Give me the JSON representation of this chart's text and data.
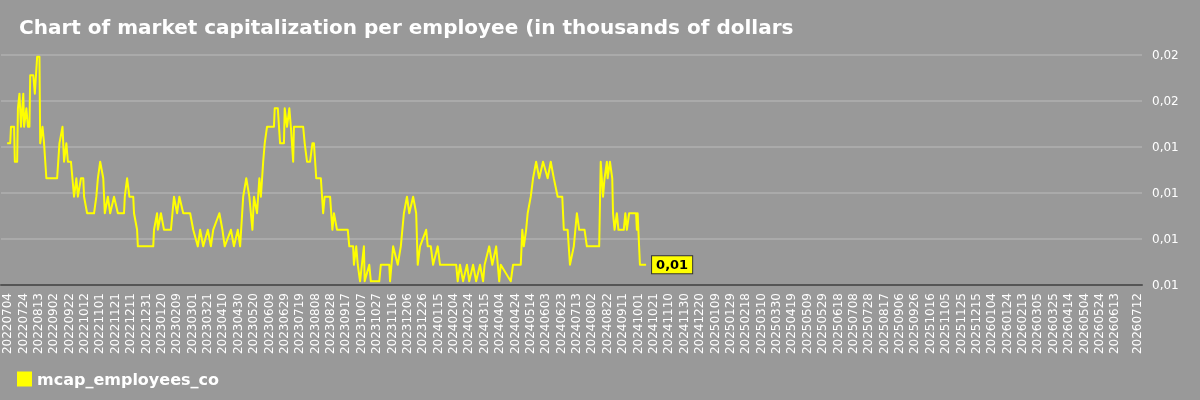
{
  "chart_data": {
    "type": "line",
    "title": "Chart of market capitalization per employee (in thousands of dollars",
    "xlim": [
      "2022-06-26",
      "2026-07-19"
    ],
    "xticks": [
      {
        "value": "2022-07-04",
        "label": "20220704"
      },
      {
        "value": "2022-07-24",
        "label": "20220724"
      },
      {
        "value": "2022-08-13",
        "label": "20220813"
      },
      {
        "value": "2022-09-02",
        "label": "20220902"
      },
      {
        "value": "2022-09-22",
        "label": "20220922"
      },
      {
        "value": "2022-10-12",
        "label": "20221012"
      },
      {
        "value": "2022-11-01",
        "label": "20221101"
      },
      {
        "value": "2022-11-21",
        "label": "20221121"
      },
      {
        "value": "2022-12-11",
        "label": "20221211"
      },
      {
        "value": "2022-12-31",
        "label": "20221231"
      },
      {
        "value": "2023-01-20",
        "label": "20230120"
      },
      {
        "value": "2023-02-09",
        "label": "20230209"
      },
      {
        "value": "2023-03-01",
        "label": "20230301"
      },
      {
        "value": "2023-03-21",
        "label": "20230321"
      },
      {
        "value": "2023-04-10",
        "label": "20230410"
      },
      {
        "value": "2023-04-30",
        "label": "20230430"
      },
      {
        "value": "2023-05-20",
        "label": "20230520"
      },
      {
        "value": "2023-06-09",
        "label": "20230609"
      },
      {
        "value": "2023-06-29",
        "label": "20230629"
      },
      {
        "value": "2023-07-19",
        "label": "20230719"
      },
      {
        "value": "2023-08-08",
        "label": "20230808"
      },
      {
        "value": "2023-08-28",
        "label": "20230828"
      },
      {
        "value": "2023-09-17",
        "label": "20230917"
      },
      {
        "value": "2023-10-07",
        "label": "20231007"
      },
      {
        "value": "2023-10-27",
        "label": "20231027"
      },
      {
        "value": "2023-11-16",
        "label": "20231116"
      },
      {
        "value": "2023-12-06",
        "label": "20231206"
      },
      {
        "value": "2023-12-26",
        "label": "20231226"
      },
      {
        "value": "2024-01-15",
        "label": "20240115"
      },
      {
        "value": "2024-02-04",
        "label": "20240204"
      },
      {
        "value": "2024-02-24",
        "label": "20240224"
      },
      {
        "value": "2024-03-15",
        "label": "20240315"
      },
      {
        "value": "2024-04-04",
        "label": "20240404"
      },
      {
        "value": "2024-04-24",
        "label": "20240424"
      },
      {
        "value": "2024-05-14",
        "label": "20240514"
      },
      {
        "value": "2024-06-03",
        "label": "20240603"
      },
      {
        "value": "2024-06-23",
        "label": "20240623"
      },
      {
        "value": "2024-07-13",
        "label": "20240713"
      },
      {
        "value": "2024-08-02",
        "label": "20240802"
      },
      {
        "value": "2024-08-22",
        "label": "20240822"
      },
      {
        "value": "2024-09-11",
        "label": "20240911"
      },
      {
        "value": "2024-10-01",
        "label": "20241001"
      },
      {
        "value": "2024-10-21",
        "label": "20241021"
      },
      {
        "value": "2024-11-10",
        "label": "20241110"
      },
      {
        "value": "2024-11-30",
        "label": "20241130"
      },
      {
        "value": "2024-12-20",
        "label": "20241220"
      },
      {
        "value": "2025-01-09",
        "label": "20250109"
      },
      {
        "value": "2025-01-29",
        "label": "20250129"
      },
      {
        "value": "2025-02-18",
        "label": "20250218"
      },
      {
        "value": "2025-03-10",
        "label": "20250310"
      },
      {
        "value": "2025-03-30",
        "label": "20250330"
      },
      {
        "value": "2025-04-19",
        "label": "20250419"
      },
      {
        "value": "2025-05-09",
        "label": "20250509"
      },
      {
        "value": "2025-05-29",
        "label": "20250529"
      },
      {
        "value": "2025-06-18",
        "label": "20250618"
      },
      {
        "value": "2025-07-08",
        "label": "20250708"
      },
      {
        "value": "2025-07-28",
        "label": "20250728"
      },
      {
        "value": "2025-08-17",
        "label": "20250817"
      },
      {
        "value": "2025-09-06",
        "label": "20250906"
      },
      {
        "value": "2025-09-26",
        "label": "20250926"
      },
      {
        "value": "2025-10-16",
        "label": "20251016"
      },
      {
        "value": "2025-11-05",
        "label": "20251105"
      },
      {
        "value": "2025-11-25",
        "label": "20251125"
      },
      {
        "value": "2025-12-15",
        "label": "20251215"
      },
      {
        "value": "2026-01-04",
        "label": "20260104"
      },
      {
        "value": "2026-01-24",
        "label": "20260124"
      },
      {
        "value": "2026-02-13",
        "label": "20260213"
      },
      {
        "value": "2026-03-05",
        "label": "20260305"
      },
      {
        "value": "2026-03-25",
        "label": "20260325"
      },
      {
        "value": "2026-04-14",
        "label": "20260414"
      },
      {
        "value": "2026-05-04",
        "label": "20260504"
      },
      {
        "value": "2026-05-24",
        "label": "20260524"
      },
      {
        "value": "2026-06-13",
        "label": "20260613"
      },
      {
        "value": "2026-07-12",
        "label": "20260712"
      }
    ],
    "ylim": [
      0.0075,
      0.02
    ],
    "yticks": [
      {
        "value": 0.0075,
        "label": "0,01"
      },
      {
        "value": 0.01,
        "label": "0,01"
      },
      {
        "value": 0.0125,
        "label": "0,01"
      },
      {
        "value": 0.015,
        "label": "0,01"
      },
      {
        "value": 0.0175,
        "label": "0,02"
      },
      {
        "value": 0.02,
        "label": "0,02"
      }
    ],
    "grid": "y",
    "legend": "bottom left",
    "x": [
      "2022-07-04",
      "2022-07-08",
      "2022-07-09",
      "2022-07-13",
      "2022-07-14",
      "2022-07-17",
      "2022-07-18",
      "2022-07-20",
      "2022-07-22",
      "2022-07-25",
      "2022-07-26",
      "2022-07-29",
      "2022-07-31",
      "2022-08-02",
      "2022-08-03",
      "2022-08-07",
      "2022-08-09",
      "2022-08-12",
      "2022-08-15",
      "2022-08-16",
      "2022-08-19",
      "2022-08-21",
      "2022-08-24",
      "2022-09-07",
      "2022-09-10",
      "2022-09-14",
      "2022-09-16",
      "2022-09-19",
      "2022-09-21",
      "2022-09-25",
      "2022-09-29",
      "2022-10-02",
      "2022-10-04",
      "2022-10-08",
      "2022-10-11",
      "2022-10-12",
      "2022-10-16",
      "2022-10-25",
      "2022-10-28",
      "2022-10-30",
      "2022-11-02",
      "2022-11-06",
      "2022-11-08",
      "2022-11-12",
      "2022-11-15",
      "2022-11-20",
      "2022-11-25",
      "2022-12-03",
      "2022-12-04",
      "2022-12-07",
      "2022-12-10",
      "2022-12-15",
      "2022-12-16",
      "2022-12-20",
      "2022-12-21",
      "2023-01-10",
      "2023-01-11",
      "2023-01-15",
      "2023-01-16",
      "2023-01-20",
      "2023-01-24",
      "2023-02-02",
      "2023-02-06",
      "2023-02-10",
      "2023-02-13",
      "2023-02-18",
      "2023-02-27",
      "2023-03-03",
      "2023-03-09",
      "2023-03-12",
      "2023-03-16",
      "2023-03-22",
      "2023-03-26",
      "2023-03-29",
      "2023-04-06",
      "2023-04-10",
      "2023-04-13",
      "2023-04-21",
      "2023-04-25",
      "2023-04-30",
      "2023-05-03",
      "2023-05-07",
      "2023-05-11",
      "2023-05-15",
      "2023-05-19",
      "2023-05-21",
      "2023-05-25",
      "2023-05-28",
      "2023-05-30",
      "2023-06-02",
      "2023-06-04",
      "2023-06-07",
      "2023-06-16",
      "2023-06-17",
      "2023-06-21",
      "2023-06-24",
      "2023-06-29",
      "2023-06-30",
      "2023-07-03",
      "2023-07-06",
      "2023-07-08",
      "2023-07-11",
      "2023-07-12",
      "2023-07-24",
      "2023-07-26",
      "2023-07-29",
      "2023-08-02",
      "2023-08-05",
      "2023-08-07",
      "2023-08-10",
      "2023-08-16",
      "2023-08-19",
      "2023-08-21",
      "2023-08-28",
      "2023-08-31",
      "2023-09-02",
      "2023-09-06",
      "2023-09-20",
      "2023-09-22",
      "2023-09-27",
      "2023-09-28",
      "2023-10-01",
      "2023-10-03",
      "2023-10-06",
      "2023-10-11",
      "2023-10-12",
      "2023-10-18",
      "2023-10-20",
      "2023-10-31",
      "2023-11-02",
      "2023-11-13",
      "2023-11-14",
      "2023-11-18",
      "2023-11-24",
      "2023-11-28",
      "2023-12-02",
      "2023-12-06",
      "2023-12-09",
      "2023-12-14",
      "2023-12-18",
      "2023-12-20",
      "2023-12-23",
      "2023-12-31",
      "2024-01-02",
      "2024-01-06",
      "2024-01-09",
      "2024-01-15",
      "2024-01-18",
      "2024-02-08",
      "2024-02-10",
      "2024-02-13",
      "2024-02-17",
      "2024-02-22",
      "2024-02-25",
      "2024-03-01",
      "2024-03-05",
      "2024-03-10",
      "2024-03-14",
      "2024-03-16",
      "2024-03-22",
      "2024-03-26",
      "2024-03-31",
      "2024-04-04",
      "2024-04-06",
      "2024-04-19",
      "2024-04-22",
      "2024-05-02",
      "2024-05-04",
      "2024-05-06",
      "2024-05-09",
      "2024-05-11",
      "2024-05-15",
      "2024-05-18",
      "2024-05-22",
      "2024-05-26",
      "2024-05-31",
      "2024-06-06",
      "2024-06-10",
      "2024-06-14",
      "2024-06-19",
      "2024-06-25",
      "2024-06-27",
      "2024-07-02",
      "2024-07-05",
      "2024-07-10",
      "2024-07-14",
      "2024-07-17",
      "2024-07-24",
      "2024-07-27",
      "2024-08-12",
      "2024-08-14",
      "2024-08-17",
      "2024-08-19",
      "2024-08-22",
      "2024-08-23",
      "2024-08-26",
      "2024-08-29",
      "2024-08-30",
      "2024-09-01",
      "2024-09-04",
      "2024-09-06",
      "2024-09-13",
      "2024-09-15",
      "2024-09-17",
      "2024-09-20",
      "2024-09-29",
      "2024-09-30",
      "2024-10-01",
      "2024-10-04",
      "2024-10-12"
    ],
    "series": [
      {
        "name": "mcap_employees_co",
        "color": "#ffff00",
        "values": [
          0.0152,
          0.0152,
          0.0161,
          0.0161,
          0.0142,
          0.0142,
          0.0171,
          0.0179,
          0.0161,
          0.0179,
          0.0161,
          0.0171,
          0.0161,
          0.0161,
          0.0189,
          0.0189,
          0.0179,
          0.0199,
          0.0199,
          0.0152,
          0.0161,
          0.0152,
          0.0133,
          0.0133,
          0.0152,
          0.0161,
          0.0142,
          0.0152,
          0.0142,
          0.0142,
          0.0123,
          0.0133,
          0.0123,
          0.0133,
          0.0133,
          0.0123,
          0.0114,
          0.0114,
          0.0123,
          0.0133,
          0.0142,
          0.0133,
          0.0114,
          0.0123,
          0.0114,
          0.0123,
          0.0114,
          0.0114,
          0.0123,
          0.0133,
          0.0123,
          0.0123,
          0.0114,
          0.0105,
          0.0096,
          0.0096,
          0.0105,
          0.0114,
          0.0105,
          0.0114,
          0.0105,
          0.0105,
          0.0123,
          0.0114,
          0.0123,
          0.0114,
          0.0114,
          0.0105,
          0.0096,
          0.0105,
          0.0096,
          0.0105,
          0.0096,
          0.0105,
          0.0114,
          0.0105,
          0.0096,
          0.0105,
          0.0096,
          0.0105,
          0.0096,
          0.0123,
          0.0133,
          0.0123,
          0.0105,
          0.0123,
          0.0114,
          0.0133,
          0.0123,
          0.0142,
          0.0152,
          0.0161,
          0.0161,
          0.0171,
          0.0171,
          0.0152,
          0.0152,
          0.0171,
          0.0161,
          0.0171,
          0.0161,
          0.0142,
          0.0161,
          0.0161,
          0.0152,
          0.0142,
          0.0142,
          0.0152,
          0.0152,
          0.0133,
          0.0133,
          0.0114,
          0.0123,
          0.0123,
          0.0105,
          0.0114,
          0.0105,
          0.0105,
          0.0096,
          0.0096,
          0.0086,
          0.0096,
          0.0086,
          0.0077,
          0.0096,
          0.0077,
          0.0086,
          0.0077,
          0.0077,
          0.0086,
          0.0086,
          0.0077,
          0.0096,
          0.0086,
          0.0096,
          0.0114,
          0.0123,
          0.0114,
          0.0123,
          0.0114,
          0.0086,
          0.0096,
          0.0105,
          0.0096,
          0.0096,
          0.0086,
          0.0096,
          0.0086,
          0.0086,
          0.0077,
          0.0086,
          0.0077,
          0.0086,
          0.0077,
          0.0086,
          0.0077,
          0.0086,
          0.0077,
          0.0086,
          0.0096,
          0.0086,
          0.0096,
          0.0077,
          0.0086,
          0.0077,
          0.0086,
          0.0086,
          0.0105,
          0.0096,
          0.0105,
          0.0114,
          0.0123,
          0.0133,
          0.0142,
          0.0133,
          0.0142,
          0.0133,
          0.0142,
          0.0133,
          0.0123,
          0.0123,
          0.0105,
          0.0105,
          0.0086,
          0.0096,
          0.0114,
          0.0105,
          0.0105,
          0.0096,
          0.0096,
          0.0142,
          0.0123,
          0.0133,
          0.0142,
          0.0133,
          0.0142,
          0.0133,
          0.0114,
          0.0105,
          0.0114,
          0.0105,
          0.0105,
          0.0114,
          0.0105,
          0.0114,
          0.0114,
          0.0105,
          0.0114,
          0.0086,
          0.0086
        ],
        "value_labels": [
          null,
          null,
          null,
          null,
          null,
          null,
          null,
          null,
          null,
          null,
          null,
          null,
          null,
          null,
          null,
          null,
          null,
          null,
          null,
          null,
          null,
          null,
          null,
          null,
          null,
          null,
          null,
          null,
          null,
          null,
          null,
          null,
          null,
          null,
          null,
          null,
          null,
          null,
          null,
          null,
          null,
          null,
          null,
          null,
          null,
          null,
          null,
          null,
          null,
          null,
          null,
          null,
          null,
          null,
          null,
          null,
          null,
          null,
          null,
          null,
          null,
          null,
          null,
          null,
          null,
          null,
          null,
          null,
          null,
          null,
          null,
          null,
          null,
          null,
          null,
          null,
          null,
          null,
          null,
          null,
          null,
          null,
          null,
          null,
          null,
          null,
          null,
          null,
          null,
          null,
          null,
          null,
          null,
          null,
          null,
          null,
          null,
          null,
          null,
          null,
          null,
          null,
          null,
          null,
          null,
          null,
          null,
          null,
          null,
          null,
          null,
          null,
          null,
          null,
          null,
          null,
          null,
          null,
          null,
          null,
          null,
          null,
          null,
          null,
          null,
          null,
          null,
          null,
          null,
          null,
          null,
          null,
          null,
          null,
          null,
          null,
          null,
          null,
          null,
          null,
          null,
          null,
          null,
          null,
          null,
          null,
          null,
          null,
          null,
          null,
          null,
          null,
          null,
          null,
          null,
          null,
          null,
          null,
          null,
          null,
          null,
          null,
          null,
          null,
          null,
          null,
          null,
          null,
          null,
          null,
          null,
          null,
          null,
          null,
          null,
          null,
          null,
          null,
          null,
          null,
          null,
          null,
          null,
          null,
          null,
          null,
          null,
          null,
          null,
          null,
          null,
          null,
          null,
          null,
          null,
          null,
          null,
          null,
          null,
          null,
          null,
          null,
          null,
          null,
          null,
          null,
          null,
          null,
          null,
          "0,01"
        ]
      }
    ]
  }
}
